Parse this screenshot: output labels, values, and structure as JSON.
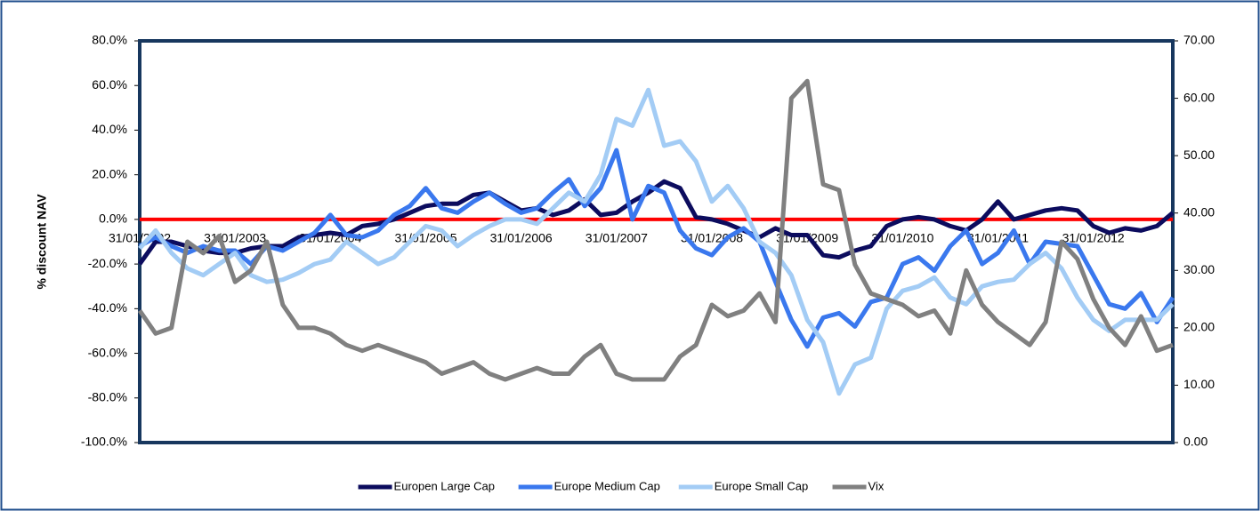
{
  "chart_data": {
    "type": "line",
    "y_label": "% discount NAV",
    "categories": [
      "31/01/2002",
      null,
      null,
      null,
      null,
      null,
      "31/01/2003",
      null,
      null,
      null,
      null,
      null,
      "31/01/2004",
      null,
      null,
      null,
      null,
      null,
      "31/01/2005",
      null,
      null,
      null,
      null,
      null,
      "31/01/2006",
      null,
      null,
      null,
      null,
      null,
      "31/01/2007",
      null,
      null,
      null,
      null,
      null,
      "31/01/2008",
      null,
      null,
      null,
      null,
      null,
      "31/01/2009",
      null,
      null,
      null,
      null,
      null,
      "31/01/2010",
      null,
      null,
      null,
      null,
      null,
      "31/01/2011",
      null,
      null,
      null,
      null,
      null,
      "31/01/2012",
      null,
      null,
      null,
      null,
      null
    ],
    "series": [
      {
        "name": "Europen Large Cap",
        "color": "#0c0c5e",
        "values": [
          -20,
          -10,
          -10,
          -12,
          -14,
          -15,
          -15,
          -13,
          -12,
          -12,
          -8,
          -7,
          -6,
          -7,
          -3,
          -2,
          0,
          3,
          6,
          7,
          7,
          11,
          12,
          8,
          4,
          5,
          2,
          4,
          9,
          2,
          3,
          8,
          12,
          17,
          14,
          1,
          0,
          -2,
          -5,
          -8,
          -4,
          -7,
          -7,
          -16,
          -17,
          -14,
          -12,
          -3,
          0,
          1,
          0,
          -3,
          -5,
          0,
          8,
          0,
          2,
          4,
          5,
          4,
          -3,
          -6,
          -4,
          -5,
          -3,
          3
        ]
      },
      {
        "name": "Europe Medium Cap",
        "color": "#3a78ee",
        "values": [
          -12,
          -8,
          -12,
          -15,
          -12,
          -14,
          -14,
          -20,
          -12,
          -14,
          -10,
          -6,
          2,
          -7,
          -8,
          -5,
          2,
          6,
          14,
          5,
          3,
          8,
          12,
          7,
          3,
          5,
          12,
          18,
          6,
          14,
          31,
          0,
          15,
          12,
          -5,
          -13,
          -16,
          -8,
          -4,
          -10,
          -28,
          -45,
          -57,
          -44,
          -42,
          -48,
          -37,
          -35,
          -20,
          -17,
          -23,
          -12,
          -5,
          -20,
          -15,
          -5,
          -20,
          -10,
          -11,
          -12,
          -25,
          -38,
          -40,
          -33,
          -46,
          -35
        ]
      },
      {
        "name": "Europe Small Cap",
        "color": "#a3ccf5",
        "values": [
          -13,
          -5,
          -15,
          -22,
          -25,
          -20,
          -15,
          -25,
          -28,
          -27,
          -24,
          -20,
          -18,
          -10,
          -15,
          -20,
          -17,
          -10,
          -3,
          -5,
          -12,
          -7,
          -3,
          0,
          0,
          -2,
          5,
          12,
          8,
          20,
          45,
          42,
          58,
          33,
          35,
          26,
          8,
          15,
          5,
          -10,
          -15,
          -25,
          -45,
          -55,
          -78,
          -65,
          -62,
          -40,
          -32,
          -30,
          -26,
          -35,
          -38,
          -30,
          -28,
          -27,
          -20,
          -15,
          -22,
          -35,
          -45,
          -50,
          -45,
          -45,
          -45,
          -38
        ]
      },
      {
        "name": "Vix",
        "color": "#808080",
        "axis": "y2",
        "values": [
          23,
          19,
          20,
          35,
          33,
          36,
          28,
          30,
          35,
          24,
          20,
          20,
          19,
          17,
          16,
          17,
          16,
          15,
          14,
          12,
          13,
          14,
          12,
          11,
          12,
          13,
          12,
          12,
          15,
          17,
          12,
          11,
          11,
          11,
          15,
          17,
          24,
          22,
          23,
          26,
          21,
          60,
          63,
          45,
          44,
          31,
          26,
          25,
          24,
          22,
          23,
          19,
          30,
          24,
          21,
          19,
          17,
          21,
          35,
          32,
          25,
          20,
          17,
          22,
          16,
          17
        ]
      }
    ],
    "reference_line": {
      "value": 0,
      "color": "#ff0000"
    },
    "ylim": [
      -100,
      80
    ],
    "yticks": [
      {
        "value": -100,
        "label": "-100.0%"
      },
      {
        "value": -80,
        "label": "-80.0%"
      },
      {
        "value": -60,
        "label": "-60.0%"
      },
      {
        "value": -40,
        "label": "-40.0%"
      },
      {
        "value": -20,
        "label": "-20.0%"
      },
      {
        "value": 0,
        "label": "0.0%"
      },
      {
        "value": 20,
        "label": "20.0%"
      },
      {
        "value": 40,
        "label": "40.0%"
      },
      {
        "value": 60,
        "label": "60.0%"
      },
      {
        "value": 80,
        "label": "80.0%"
      }
    ],
    "y2lim": [
      0,
      70
    ],
    "y2ticks": [
      {
        "value": 0,
        "label": "0.00"
      },
      {
        "value": 10,
        "label": "10.00"
      },
      {
        "value": 20,
        "label": "20.00"
      },
      {
        "value": 30,
        "label": "30.00"
      },
      {
        "value": 40,
        "label": "40.00"
      },
      {
        "value": 50,
        "label": "50.00"
      },
      {
        "value": 60,
        "label": "60.00"
      },
      {
        "value": 70,
        "label": "70.00"
      }
    ],
    "legend": "bottom"
  }
}
